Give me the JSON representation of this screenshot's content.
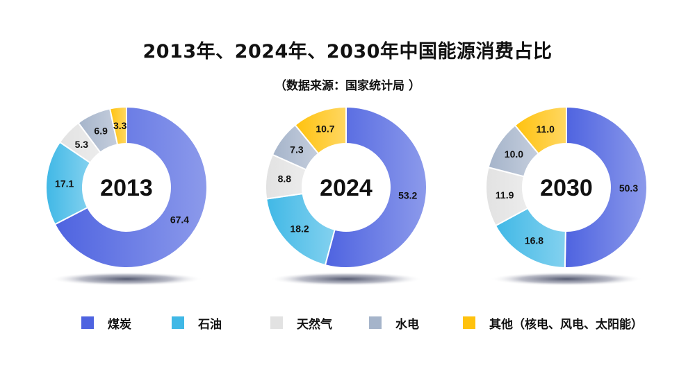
{
  "title": "2013年、2024年、2030年中国能源消费占比",
  "subtitle": "（数据来源：国家统计局 ）",
  "colors": {
    "coal": "#4e63e0",
    "oil": "#40b8e6",
    "gas": "#e2e2e2",
    "hydro": "#a5b4ca",
    "other": "#ffc20e"
  },
  "legend": [
    {
      "key": "coal",
      "label": "煤炭"
    },
    {
      "key": "oil",
      "label": "石油"
    },
    {
      "key": "gas",
      "label": "天然气"
    },
    {
      "key": "hydro",
      "label": "水电"
    },
    {
      "key": "other",
      "label": "其他（核电、风电、太阳能）"
    }
  ],
  "chart_data": [
    {
      "type": "pie",
      "center_label": "2013",
      "categories": [
        "煤炭",
        "石油",
        "天然气",
        "水电",
        "其他（核电、风电、太阳能）"
      ],
      "values": [
        67.4,
        17.1,
        5.3,
        6.9,
        3.3
      ],
      "value_labels": [
        "67.4",
        "17.1",
        "5.3",
        "6.9",
        "3.3"
      ]
    },
    {
      "type": "pie",
      "center_label": "2024",
      "categories": [
        "煤炭",
        "石油",
        "天然气",
        "水电",
        "其他（核电、风电、太阳能）"
      ],
      "values": [
        53.2,
        18.2,
        8.8,
        7.3,
        10.7
      ],
      "value_labels": [
        "53.2",
        "18.2",
        "8.8",
        "7.3",
        "10.7"
      ]
    },
    {
      "type": "pie",
      "center_label": "2030",
      "categories": [
        "煤炭",
        "石油",
        "天然气",
        "水电",
        "其他（核电、风电、太阳能）"
      ],
      "values": [
        50.3,
        16.8,
        11.9,
        10.0,
        11.0
      ],
      "value_labels": [
        "50.3",
        "16.8",
        "11.9",
        "10.0",
        "11.0"
      ]
    }
  ]
}
